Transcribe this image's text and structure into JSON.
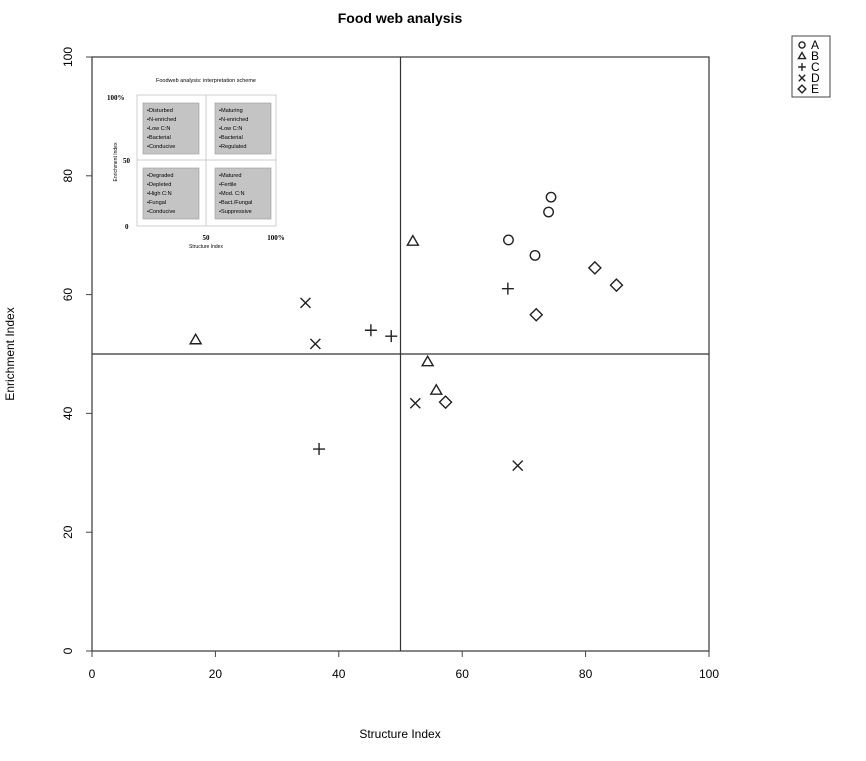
{
  "chart_data": {
    "type": "scatter",
    "title": "Food web analysis",
    "xlabel": "Structure Index",
    "ylabel": "Enrichment Index",
    "xlim": [
      0,
      100
    ],
    "ylim": [
      0,
      100
    ],
    "xticks": [
      "0",
      "20",
      "40",
      "60",
      "80",
      "100"
    ],
    "yticks": [
      "0",
      "20",
      "40",
      "60",
      "80",
      "100"
    ],
    "reference_lines": {
      "x": 50,
      "y": 50
    },
    "legend": {
      "placement": "outside-top-right"
    },
    "series": [
      {
        "name": "A",
        "marker": "circle",
        "points": [
          [
            67.5,
            69.2
          ],
          [
            71.8,
            66.6
          ],
          [
            74.0,
            73.9
          ],
          [
            74.4,
            76.4
          ]
        ]
      },
      {
        "name": "B",
        "marker": "triangle",
        "points": [
          [
            16.8,
            52.4
          ],
          [
            52.0,
            69.0
          ],
          [
            54.4,
            48.7
          ],
          [
            55.8,
            43.9
          ]
        ]
      },
      {
        "name": "C",
        "marker": "plus",
        "points": [
          [
            36.8,
            34.0
          ],
          [
            45.2,
            54.0
          ],
          [
            48.5,
            53.0
          ],
          [
            67.4,
            61.0
          ]
        ]
      },
      {
        "name": "D",
        "marker": "cross",
        "points": [
          [
            34.6,
            58.6
          ],
          [
            36.2,
            51.7
          ],
          [
            52.4,
            41.7
          ],
          [
            69.0,
            31.2
          ]
        ]
      },
      {
        "name": "E",
        "marker": "diamond",
        "points": [
          [
            57.3,
            41.9
          ],
          [
            72.0,
            56.6
          ],
          [
            81.5,
            64.5
          ],
          [
            85.0,
            61.6
          ]
        ]
      }
    ],
    "inset": {
      "title": "Foodweb analysis: interpretation scheme",
      "xlabel": "Structure Index",
      "ylabel": "Enrichment Index",
      "xticks": [
        "0",
        "50",
        "100%"
      ],
      "yticks": [
        "0",
        "50",
        "100%"
      ],
      "quadrants": {
        "top_left": [
          "•Disturbed",
          "•N-enriched",
          "•Low C:N",
          "•Bacterial",
          "•Conducive"
        ],
        "top_right": [
          "•Maturing",
          "•N-enriched",
          "•Low C:N",
          "•Bacterial",
          "•Regulated"
        ],
        "bottom_left": [
          "•Degraded",
          "•Depleted",
          "•High C:N",
          "•Fungal",
          "•Conducive"
        ],
        "bottom_right": [
          "•Matured",
          "•Fertile",
          "•Mod. C:N",
          "•Bact./Fungal",
          "•Suppressive"
        ]
      }
    }
  }
}
